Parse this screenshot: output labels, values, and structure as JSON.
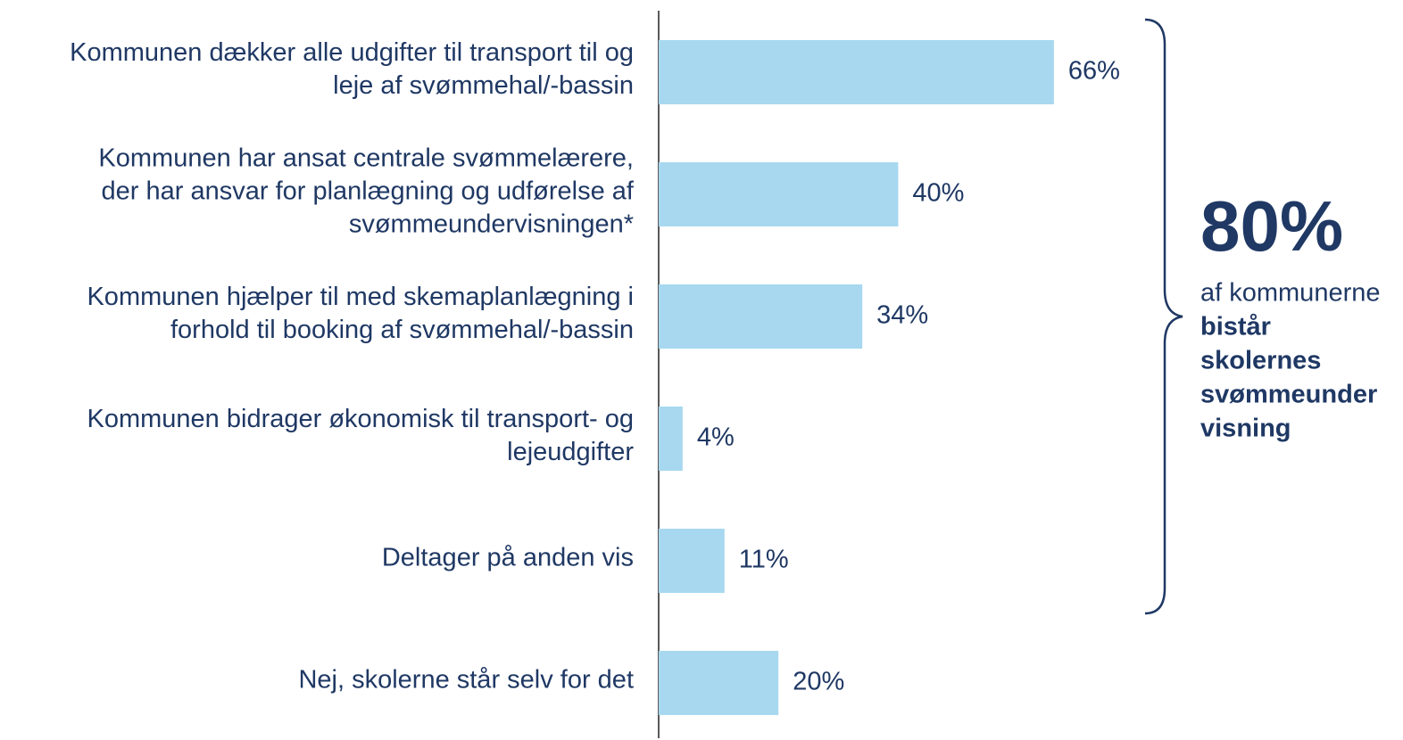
{
  "chart_data": {
    "type": "barh",
    "categories": [
      [
        "Kommunen dækker alle udgifter til transport til og",
        "leje af svømmehal/-bassin"
      ],
      [
        "Kommunen har ansat centrale svømmelærere,",
        "der har ansvar for planlægning og udførelse af",
        "svømmeundervisningen*"
      ],
      [
        "Kommunen hjælper til med skemaplanlægning i",
        "forhold til booking af svømmehal/-bassin"
      ],
      [
        "Kommunen bidrager økonomisk til transport- og",
        "lejeudgifter"
      ],
      [
        "Deltager på anden vis"
      ],
      [
        "Nej, skolerne står selv for det"
      ]
    ],
    "values": [
      66,
      40,
      34,
      4,
      11,
      20
    ],
    "value_labels": [
      "66%",
      "40%",
      "34%",
      "4%",
      "11%",
      "20%"
    ],
    "color": "#a7d8ef",
    "xlim": [
      0,
      100
    ],
    "annotation": {
      "headline": "80%",
      "lines": [
        "af kommunerne"
      ],
      "bold_lines": [
        "bistår",
        "skolernes",
        "svømmeunder",
        "visning"
      ]
    }
  }
}
